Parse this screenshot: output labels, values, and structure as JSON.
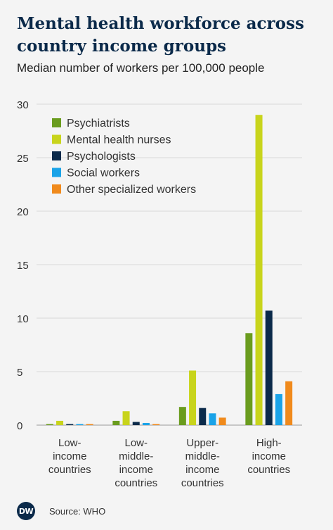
{
  "header": {
    "title": "Mental health workforce across country income groups",
    "subtitle": "Median number of workers per 100,000 people"
  },
  "footer": {
    "logo": "DW",
    "source": "Source: WHO"
  },
  "chart_data": {
    "type": "bar",
    "title": "Mental health workforce across country income groups",
    "subtitle": "Median number of workers per 100,000 people",
    "xlabel": "",
    "ylabel": "",
    "ylim": [
      0,
      30
    ],
    "yticks": [
      0,
      5,
      10,
      15,
      20,
      25,
      30
    ],
    "grid": true,
    "legend_position": "top-left",
    "categories": [
      [
        "Low-",
        "income",
        "countries"
      ],
      [
        "Low-",
        "middle-",
        "income",
        "countries"
      ],
      [
        "Upper-",
        "middle-",
        "income",
        "countries"
      ],
      [
        "High-",
        "income",
        "countries"
      ]
    ],
    "series": [
      {
        "name": "Psychiatrists",
        "color": "#6a9c1e",
        "values": [
          0.1,
          0.4,
          1.7,
          8.6
        ]
      },
      {
        "name": "Mental health nurses",
        "color": "#c8d41c",
        "values": [
          0.4,
          1.3,
          5.1,
          29.0
        ]
      },
      {
        "name": "Psychologists",
        "color": "#0b2a4a",
        "values": [
          0.1,
          0.3,
          1.6,
          10.7
        ]
      },
      {
        "name": "Social workers",
        "color": "#1aa3e8",
        "values": [
          0.1,
          0.2,
          1.1,
          2.9
        ]
      },
      {
        "name": "Other specialized workers",
        "color": "#f08a1c",
        "values": [
          0.1,
          0.1,
          0.7,
          4.1
        ]
      }
    ]
  }
}
